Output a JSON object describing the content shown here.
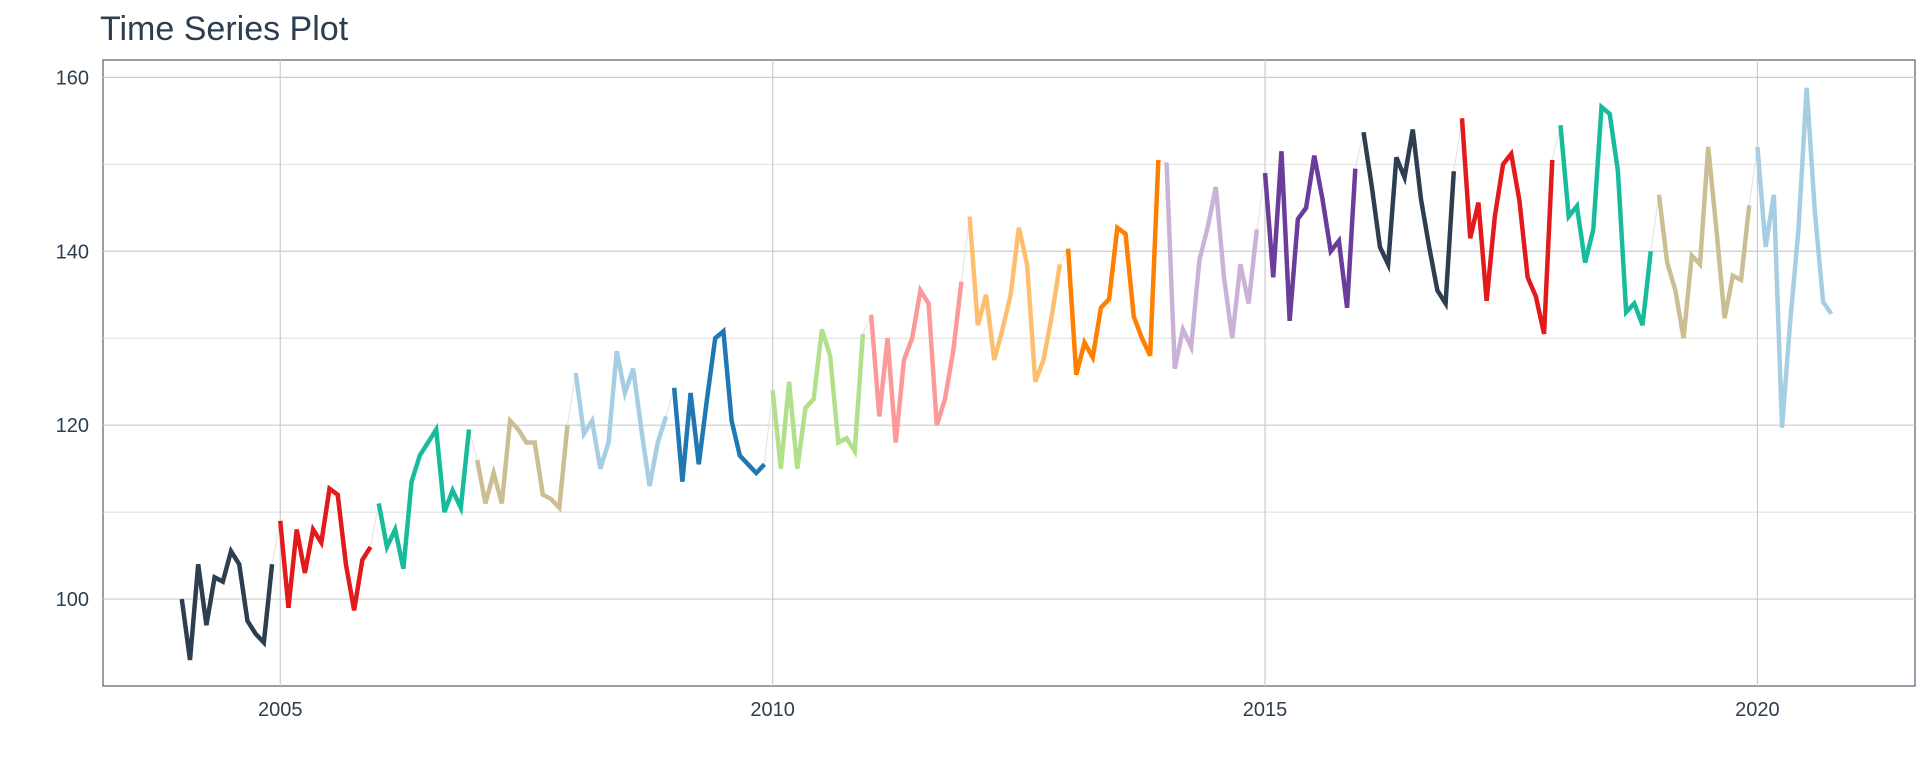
{
  "chart_data": {
    "type": "line",
    "title": "Time Series Plot",
    "xlabel": "",
    "ylabel": "",
    "x_ticks": [
      "2005",
      "2010",
      "2015",
      "2020"
    ],
    "y_ticks": [
      100,
      120,
      140,
      160
    ],
    "xlim": [
      2003.2,
      2021.6
    ],
    "ylim": [
      90,
      162
    ],
    "grid": true,
    "legend": "none",
    "series": [
      {
        "color": "#2c3e50",
        "x_start": 2004.0,
        "values": [
          100,
          93,
          104,
          97,
          102.5,
          102,
          105.5,
          104,
          97.5,
          96,
          95,
          104
        ]
      },
      {
        "color": "#e31a1c",
        "x_start": 2005.0,
        "values": [
          109,
          99,
          108,
          103,
          108,
          106.5,
          112.7,
          112,
          104,
          98.7,
          104.5,
          106
        ]
      },
      {
        "color": "#18bc9c",
        "x_start": 2006.0,
        "values": [
          111,
          106,
          108,
          103.5,
          113.5,
          116.5,
          118,
          119.5,
          110,
          112.5,
          110.5,
          119.5
        ]
      },
      {
        "color": "#ccbe93",
        "x_start": 2007.0,
        "values": [
          116,
          111,
          114.5,
          111,
          120.5,
          119.5,
          118,
          118,
          112,
          111.5,
          110.5,
          120
        ]
      },
      {
        "color": "#a6cee3",
        "x_start": 2008.0,
        "values": [
          126,
          119,
          120.5,
          115,
          118,
          128.5,
          123.7,
          126.5,
          119.5,
          113,
          118,
          121
        ]
      },
      {
        "color": "#1f78b4",
        "x_start": 2009.0,
        "values": [
          124.3,
          113.5,
          123.7,
          115.5,
          123,
          130,
          130.8,
          120.5,
          116.5,
          115.5,
          114.5,
          115.5
        ]
      },
      {
        "color": "#b2df8a",
        "x_start": 2010.0,
        "values": [
          124,
          115,
          125,
          115,
          122,
          123,
          131,
          128,
          118,
          118.5,
          117,
          130.5
        ]
      },
      {
        "color": "#fb9a99",
        "x_start": 2011.0,
        "values": [
          132.7,
          121,
          130,
          118,
          127.5,
          130,
          135.5,
          134,
          120,
          123,
          128.5,
          136.5
        ]
      },
      {
        "color": "#fdbf6f",
        "x_start": 2012.0,
        "values": [
          144,
          131.5,
          135,
          127.5,
          131,
          135,
          142.7,
          138.5,
          125,
          127.5,
          132.5,
          138.5
        ]
      },
      {
        "color": "#ff7f00",
        "x_start": 2013.0,
        "values": [
          140.3,
          125.8,
          129.5,
          127.8,
          133.5,
          134.5,
          142.7,
          142,
          132.5,
          130,
          128,
          150.5
        ]
      },
      {
        "color": "#cab2d6",
        "x_start": 2014.0,
        "values": [
          150.2,
          126.5,
          131,
          129,
          139,
          142.7,
          147.4,
          137,
          130,
          138.5,
          134,
          142.5
        ]
      },
      {
        "color": "#6a3d9a",
        "x_start": 2015.0,
        "values": [
          149,
          137,
          151.5,
          132,
          143.7,
          145,
          151,
          146,
          140,
          141.2,
          133.5,
          149.5
        ]
      },
      {
        "color": "#2c3e50",
        "x_start": 2016.0,
        "values": [
          153.7,
          147.5,
          140.5,
          138.5,
          150.8,
          148.5,
          154,
          146,
          140.5,
          135.5,
          134,
          149.2
        ]
      },
      {
        "color": "#e31a1c",
        "x_start": 2017.0,
        "values": [
          155.3,
          141.5,
          145.6,
          134.3,
          144,
          150,
          151.2,
          145.8,
          137,
          134.8,
          130.5,
          150.5
        ]
      },
      {
        "color": "#18bc9c",
        "x_start": 2018.0,
        "values": [
          154.5,
          144,
          145.2,
          138.7,
          142.5,
          156.6,
          155.8,
          149.2,
          133,
          134,
          131.5,
          140
        ]
      },
      {
        "color": "#ccbe93",
        "x_start": 2019.0,
        "values": [
          146.5,
          138.7,
          135.5,
          130,
          139.5,
          138.5,
          152,
          142.5,
          132.3,
          137.2,
          136.7,
          145.3
        ]
      },
      {
        "color": "#a6cee3",
        "x_start": 2020.0,
        "values": [
          152,
          140.5,
          146.5,
          119.7,
          132,
          142.5,
          158.8,
          144.5,
          134.2,
          132.8
        ]
      }
    ]
  }
}
